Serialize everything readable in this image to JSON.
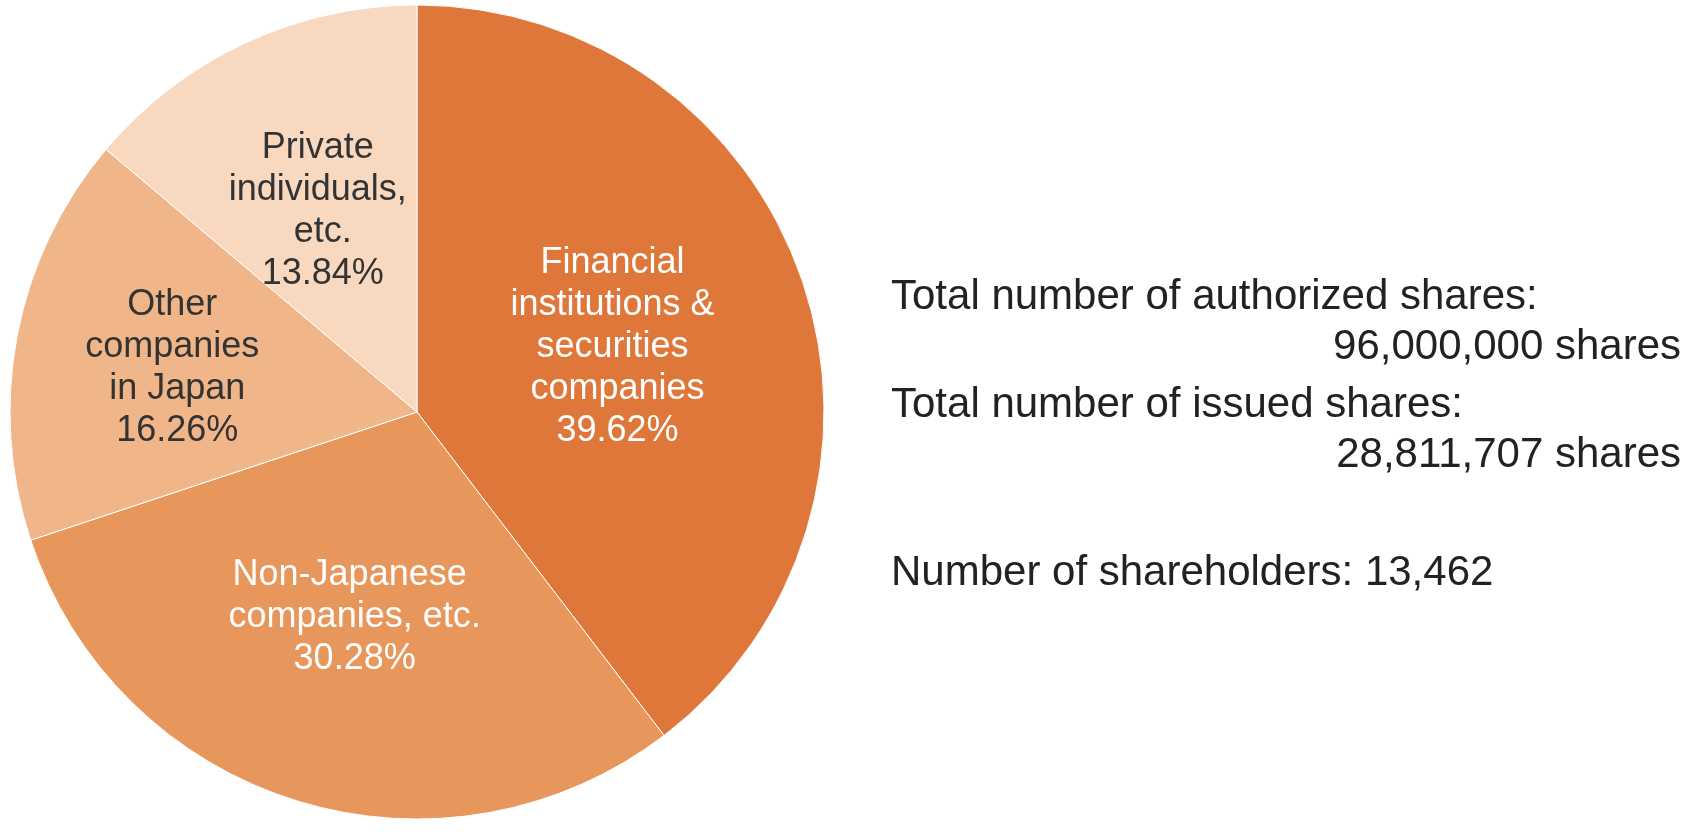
{
  "chart_data": {
    "type": "pie",
    "categories": [
      "Financial institutions & securities companies",
      "Non-Japanese companies, etc.",
      "Other companies in Japan",
      "Private individuals, etc."
    ],
    "values": [
      39.62,
      30.28,
      16.26,
      13.84
    ],
    "value_labels": [
      "39.62%",
      "30.28%",
      "16.26%",
      "13.84%"
    ],
    "colors": [
      "#e0773a",
      "#e8975c",
      "#f0b68a",
      "#f8d9c0"
    ],
    "annotations": [
      "Total number of authorized shares: 96,000,000 shares",
      "Total number of issued shares: 28,811,707 shares",
      "Number of shareholders: 13,462"
    ]
  }
}
